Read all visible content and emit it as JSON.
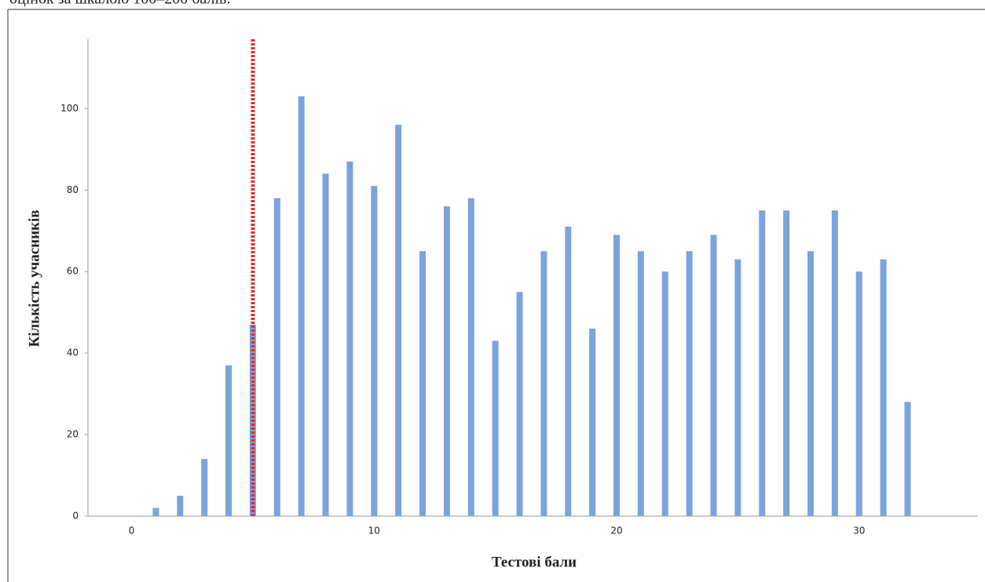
{
  "caption": "оцінок за шкалою 100–200 балів.",
  "chart_data": {
    "type": "bar",
    "xlabel": "Тестові бали",
    "ylabel": "Кількість учасників",
    "x": [
      1,
      2,
      3,
      4,
      5,
      6,
      7,
      8,
      9,
      10,
      11,
      12,
      13,
      14,
      15,
      16,
      17,
      18,
      19,
      20,
      21,
      22,
      23,
      24,
      25,
      26,
      27,
      28,
      29,
      30,
      31,
      32
    ],
    "values": [
      2,
      5,
      14,
      37,
      47,
      78,
      103,
      84,
      87,
      81,
      96,
      65,
      76,
      78,
      43,
      55,
      65,
      71,
      46,
      69,
      65,
      60,
      65,
      69,
      63,
      75,
      75,
      65,
      75,
      60,
      63,
      28
    ],
    "color": "#7ba3dc",
    "threshold": 5,
    "threshold_color": "#e03030",
    "xlim": [
      -1.8,
      34.9
    ],
    "xticks": [
      0,
      10,
      20,
      30
    ],
    "ylim": [
      0,
      117
    ],
    "yticks": [
      0,
      20,
      40,
      60,
      80,
      100
    ],
    "grid": false
  }
}
